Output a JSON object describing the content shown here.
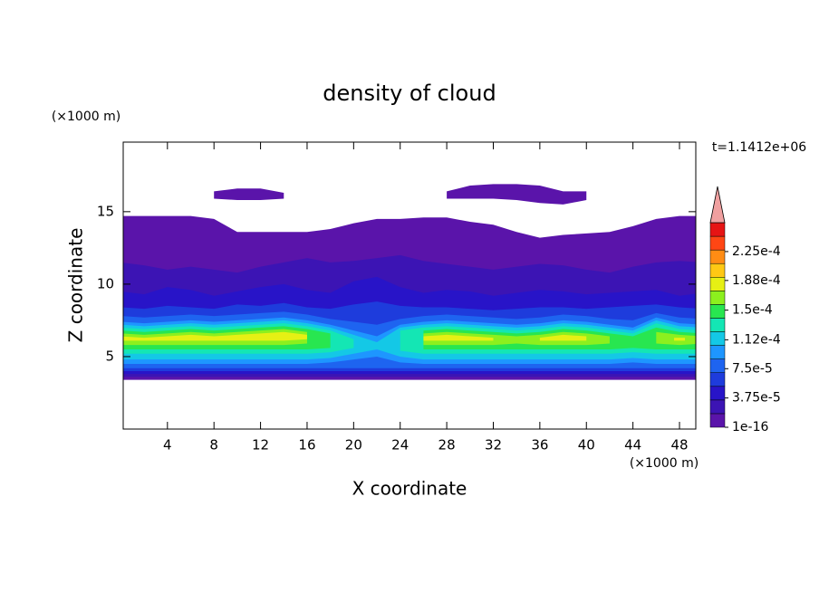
{
  "chart_data": {
    "type": "contour",
    "title": "density of cloud",
    "x_label": "X coordinate",
    "y_label": "Z coordinate",
    "x_unit": "(×1000 m)",
    "y_unit": "(×1000 m)",
    "time_label": "t=1.1412e+06",
    "xlim": [
      0.2,
      49.4
    ],
    "ylim": [
      0,
      19.8
    ],
    "xticks": [
      4,
      8,
      12,
      16,
      20,
      24,
      28,
      32,
      36,
      40,
      44,
      48
    ],
    "yticks": [
      5,
      10,
      15
    ],
    "colorbar": {
      "colors": [
        "#5a14aa",
        "#3c14b4",
        "#2814c8",
        "#1e3cdc",
        "#1e64f0",
        "#1e96ff",
        "#14c8e6",
        "#14e6b4",
        "#28e650",
        "#8cf01e",
        "#e6f014",
        "#ffc814",
        "#ff8c14",
        "#ff4614",
        "#e61414"
      ],
      "arrow_color": "#f0a0a0",
      "clim": [
        1e-16,
        0.000262
      ],
      "ticks": [
        {
          "value": 1e-16,
          "label": "1e-16"
        },
        {
          "value": 3.75e-05,
          "label": "3.75e-5"
        },
        {
          "value": 7.5e-05,
          "label": "7.5e-5"
        },
        {
          "value": 0.000112,
          "label": "1.12e-4"
        },
        {
          "value": 0.00015,
          "label": "1.5e-4"
        },
        {
          "value": 0.000188,
          "label": "1.88e-4"
        },
        {
          "value": 0.000225,
          "label": "2.25e-4"
        }
      ]
    },
    "x": [
      0,
      2,
      4,
      6,
      8,
      10,
      12,
      14,
      16,
      18,
      20,
      22,
      24,
      26,
      28,
      30,
      32,
      34,
      36,
      38,
      40,
      42,
      44,
      46,
      48,
      50
    ],
    "layers": [
      {
        "level": 0,
        "top": [
          14.7,
          14.7,
          14.7,
          14.7,
          14.5,
          13.6,
          13.6,
          13.6,
          13.6,
          13.8,
          14.2,
          14.5,
          14.5,
          14.6,
          14.6,
          14.3,
          14.1,
          13.6,
          13.2,
          13.4,
          13.5,
          13.6,
          14.0,
          14.5,
          14.7,
          14.7
        ],
        "bottom": [
          3.4,
          3.4,
          3.4,
          3.4,
          3.4,
          3.4,
          3.4,
          3.4,
          3.4,
          3.4,
          3.4,
          3.4,
          3.4,
          3.4,
          3.4,
          3.4,
          3.4,
          3.4,
          3.4,
          3.4,
          3.4,
          3.4,
          3.4,
          3.4,
          3.4,
          3.4
        ]
      },
      {
        "level": 0,
        "top": [
          null,
          null,
          null,
          null,
          16.4,
          16.6,
          16.6,
          16.3,
          null,
          null,
          null,
          null,
          null,
          null,
          16.4,
          16.8,
          16.9,
          16.9,
          16.8,
          16.4,
          16.4,
          null,
          null,
          null,
          null,
          null
        ],
        "bottom": [
          null,
          null,
          null,
          null,
          15.9,
          15.8,
          15.8,
          15.9,
          null,
          null,
          null,
          null,
          null,
          null,
          15.9,
          15.9,
          15.9,
          15.8,
          15.6,
          15.5,
          15.8,
          null,
          null,
          null,
          null,
          null
        ]
      },
      {
        "level": 1,
        "top": [
          11.5,
          11.3,
          11.0,
          11.2,
          11.0,
          10.8,
          11.2,
          11.5,
          11.8,
          11.5,
          11.6,
          11.8,
          12.0,
          11.6,
          11.4,
          11.2,
          11.0,
          11.2,
          11.4,
          11.3,
          11.0,
          10.8,
          11.2,
          11.5,
          11.6,
          11.5
        ],
        "bottom": [
          3.6,
          3.6,
          3.6,
          3.6,
          3.6,
          3.6,
          3.6,
          3.6,
          3.6,
          3.6,
          3.6,
          3.6,
          3.6,
          3.6,
          3.6,
          3.6,
          3.6,
          3.6,
          3.6,
          3.6,
          3.6,
          3.6,
          3.6,
          3.6,
          3.6,
          3.6
        ]
      },
      {
        "level": 2,
        "top": [
          9.5,
          9.3,
          9.8,
          9.6,
          9.2,
          9.5,
          9.8,
          10.0,
          9.6,
          9.4,
          10.2,
          10.5,
          9.8,
          9.4,
          9.6,
          9.5,
          9.2,
          9.4,
          9.6,
          9.5,
          9.3,
          9.4,
          9.5,
          9.6,
          9.2,
          9.4
        ],
        "bottom": [
          3.8,
          3.8,
          3.8,
          3.8,
          3.8,
          3.8,
          3.8,
          3.8,
          3.8,
          3.8,
          3.8,
          3.8,
          3.8,
          3.8,
          3.8,
          3.8,
          3.8,
          3.8,
          3.8,
          3.8,
          3.8,
          3.8,
          3.8,
          3.8,
          3.8,
          3.8
        ]
      },
      {
        "level": 3,
        "top": [
          8.4,
          8.3,
          8.5,
          8.4,
          8.3,
          8.6,
          8.5,
          8.7,
          8.4,
          8.3,
          8.6,
          8.8,
          8.5,
          8.4,
          8.4,
          8.3,
          8.2,
          8.3,
          8.4,
          8.4,
          8.3,
          8.4,
          8.5,
          8.6,
          8.4,
          8.3
        ],
        "bottom": [
          4.0,
          4.0,
          4.0,
          4.0,
          4.0,
          4.0,
          4.0,
          4.0,
          4.0,
          4.0,
          4.0,
          4.0,
          4.0,
          4.0,
          4.0,
          4.0,
          4.0,
          4.0,
          4.0,
          4.0,
          4.0,
          4.0,
          4.0,
          4.0,
          4.0,
          4.0
        ]
      },
      {
        "level": 4,
        "top": [
          7.8,
          7.7,
          7.8,
          7.9,
          7.8,
          7.9,
          8.0,
          8.1,
          7.9,
          7.6,
          7.4,
          7.2,
          7.6,
          7.8,
          7.9,
          7.8,
          7.7,
          7.6,
          7.7,
          7.9,
          7.8,
          7.6,
          7.5,
          8.0,
          7.7,
          7.6
        ],
        "bottom": [
          4.2,
          4.2,
          4.2,
          4.2,
          4.2,
          4.2,
          4.2,
          4.2,
          4.2,
          4.2,
          4.2,
          4.2,
          4.2,
          4.2,
          4.2,
          4.2,
          4.2,
          4.2,
          4.2,
          4.2,
          4.2,
          4.2,
          4.2,
          4.2,
          4.2,
          4.2
        ]
      },
      {
        "level": 5,
        "top": [
          7.4,
          7.3,
          7.4,
          7.5,
          7.4,
          7.5,
          7.6,
          7.7,
          7.5,
          7.2,
          6.8,
          6.4,
          7.2,
          7.4,
          7.5,
          7.4,
          7.3,
          7.2,
          7.3,
          7.5,
          7.4,
          7.2,
          7.0,
          7.7,
          7.3,
          7.2
        ],
        "bottom": [
          4.5,
          4.5,
          4.5,
          4.5,
          4.5,
          4.5,
          4.5,
          4.5,
          4.5,
          4.6,
          4.8,
          5.0,
          4.6,
          4.5,
          4.5,
          4.5,
          4.5,
          4.5,
          4.5,
          4.5,
          4.5,
          4.5,
          4.6,
          4.5,
          4.5,
          4.5
        ]
      },
      {
        "level": 6,
        "top": [
          7.2,
          7.1,
          7.2,
          7.3,
          7.2,
          7.3,
          7.4,
          7.5,
          7.3,
          7.0,
          6.5,
          6.0,
          7.0,
          7.2,
          7.3,
          7.2,
          7.1,
          7.0,
          7.1,
          7.3,
          7.2,
          7.0,
          6.8,
          7.5,
          7.1,
          7.0
        ],
        "bottom": [
          4.8,
          4.8,
          4.8,
          4.8,
          4.8,
          4.8,
          4.8,
          4.8,
          4.8,
          4.9,
          5.2,
          5.5,
          5.0,
          4.8,
          4.8,
          4.8,
          4.8,
          4.8,
          4.8,
          4.8,
          4.8,
          4.8,
          4.9,
          4.8,
          4.8,
          4.8
        ]
      },
      {
        "level": 7,
        "top": [
          7.0,
          6.9,
          7.0,
          7.1,
          7.0,
          7.1,
          7.2,
          7.3,
          7.1,
          6.8,
          6.2,
          null,
          6.8,
          7.0,
          7.1,
          7.0,
          6.9,
          6.8,
          6.9,
          7.1,
          7.0,
          6.8,
          6.6,
          7.3,
          6.9,
          6.8
        ],
        "bottom": [
          5.2,
          5.2,
          5.2,
          5.2,
          5.2,
          5.2,
          5.2,
          5.2,
          5.2,
          5.3,
          5.6,
          null,
          5.4,
          5.2,
          5.2,
          5.2,
          5.2,
          5.2,
          5.2,
          5.2,
          5.2,
          5.2,
          5.3,
          5.2,
          5.2,
          5.2
        ]
      },
      {
        "level": 8,
        "top": [
          6.8,
          6.7,
          6.8,
          6.9,
          6.8,
          6.9,
          7.0,
          7.1,
          6.9,
          6.6,
          null,
          null,
          null,
          6.8,
          6.9,
          6.8,
          6.7,
          6.6,
          6.7,
          6.9,
          6.8,
          6.6,
          6.4,
          7.0,
          6.7,
          6.6
        ],
        "bottom": [
          5.5,
          5.5,
          5.5,
          5.5,
          5.5,
          5.5,
          5.5,
          5.5,
          5.5,
          5.6,
          null,
          null,
          null,
          5.5,
          5.5,
          5.5,
          5.5,
          5.5,
          5.5,
          5.5,
          5.5,
          5.5,
          5.6,
          5.5,
          5.5,
          5.5
        ]
      },
      {
        "level": 9,
        "top": [
          6.6,
          6.5,
          6.6,
          6.7,
          6.6,
          6.7,
          6.8,
          6.9,
          6.7,
          null,
          null,
          null,
          null,
          6.6,
          6.7,
          6.6,
          6.5,
          6.4,
          6.5,
          6.7,
          6.6,
          6.4,
          null,
          6.7,
          6.5,
          6.4
        ],
        "bottom": [
          5.8,
          5.8,
          5.8,
          5.8,
          5.8,
          5.8,
          5.8,
          5.8,
          5.9,
          null,
          null,
          null,
          null,
          5.8,
          5.8,
          5.8,
          5.8,
          5.9,
          5.8,
          5.8,
          5.8,
          5.9,
          null,
          5.9,
          5.8,
          5.9
        ]
      },
      {
        "level": 10,
        "top": [
          6.4,
          6.3,
          6.4,
          6.5,
          6.4,
          6.5,
          6.6,
          6.7,
          6.5,
          null,
          null,
          null,
          null,
          6.4,
          6.5,
          6.4,
          6.3,
          null,
          6.3,
          6.5,
          6.4,
          null,
          null,
          null,
          6.3,
          null
        ],
        "bottom": [
          6.1,
          6.1,
          6.1,
          6.1,
          6.1,
          6.1,
          6.1,
          6.1,
          6.2,
          null,
          null,
          null,
          null,
          6.1,
          6.1,
          6.1,
          6.1,
          null,
          6.1,
          6.1,
          6.1,
          null,
          null,
          null,
          6.1,
          null
        ]
      }
    ]
  }
}
